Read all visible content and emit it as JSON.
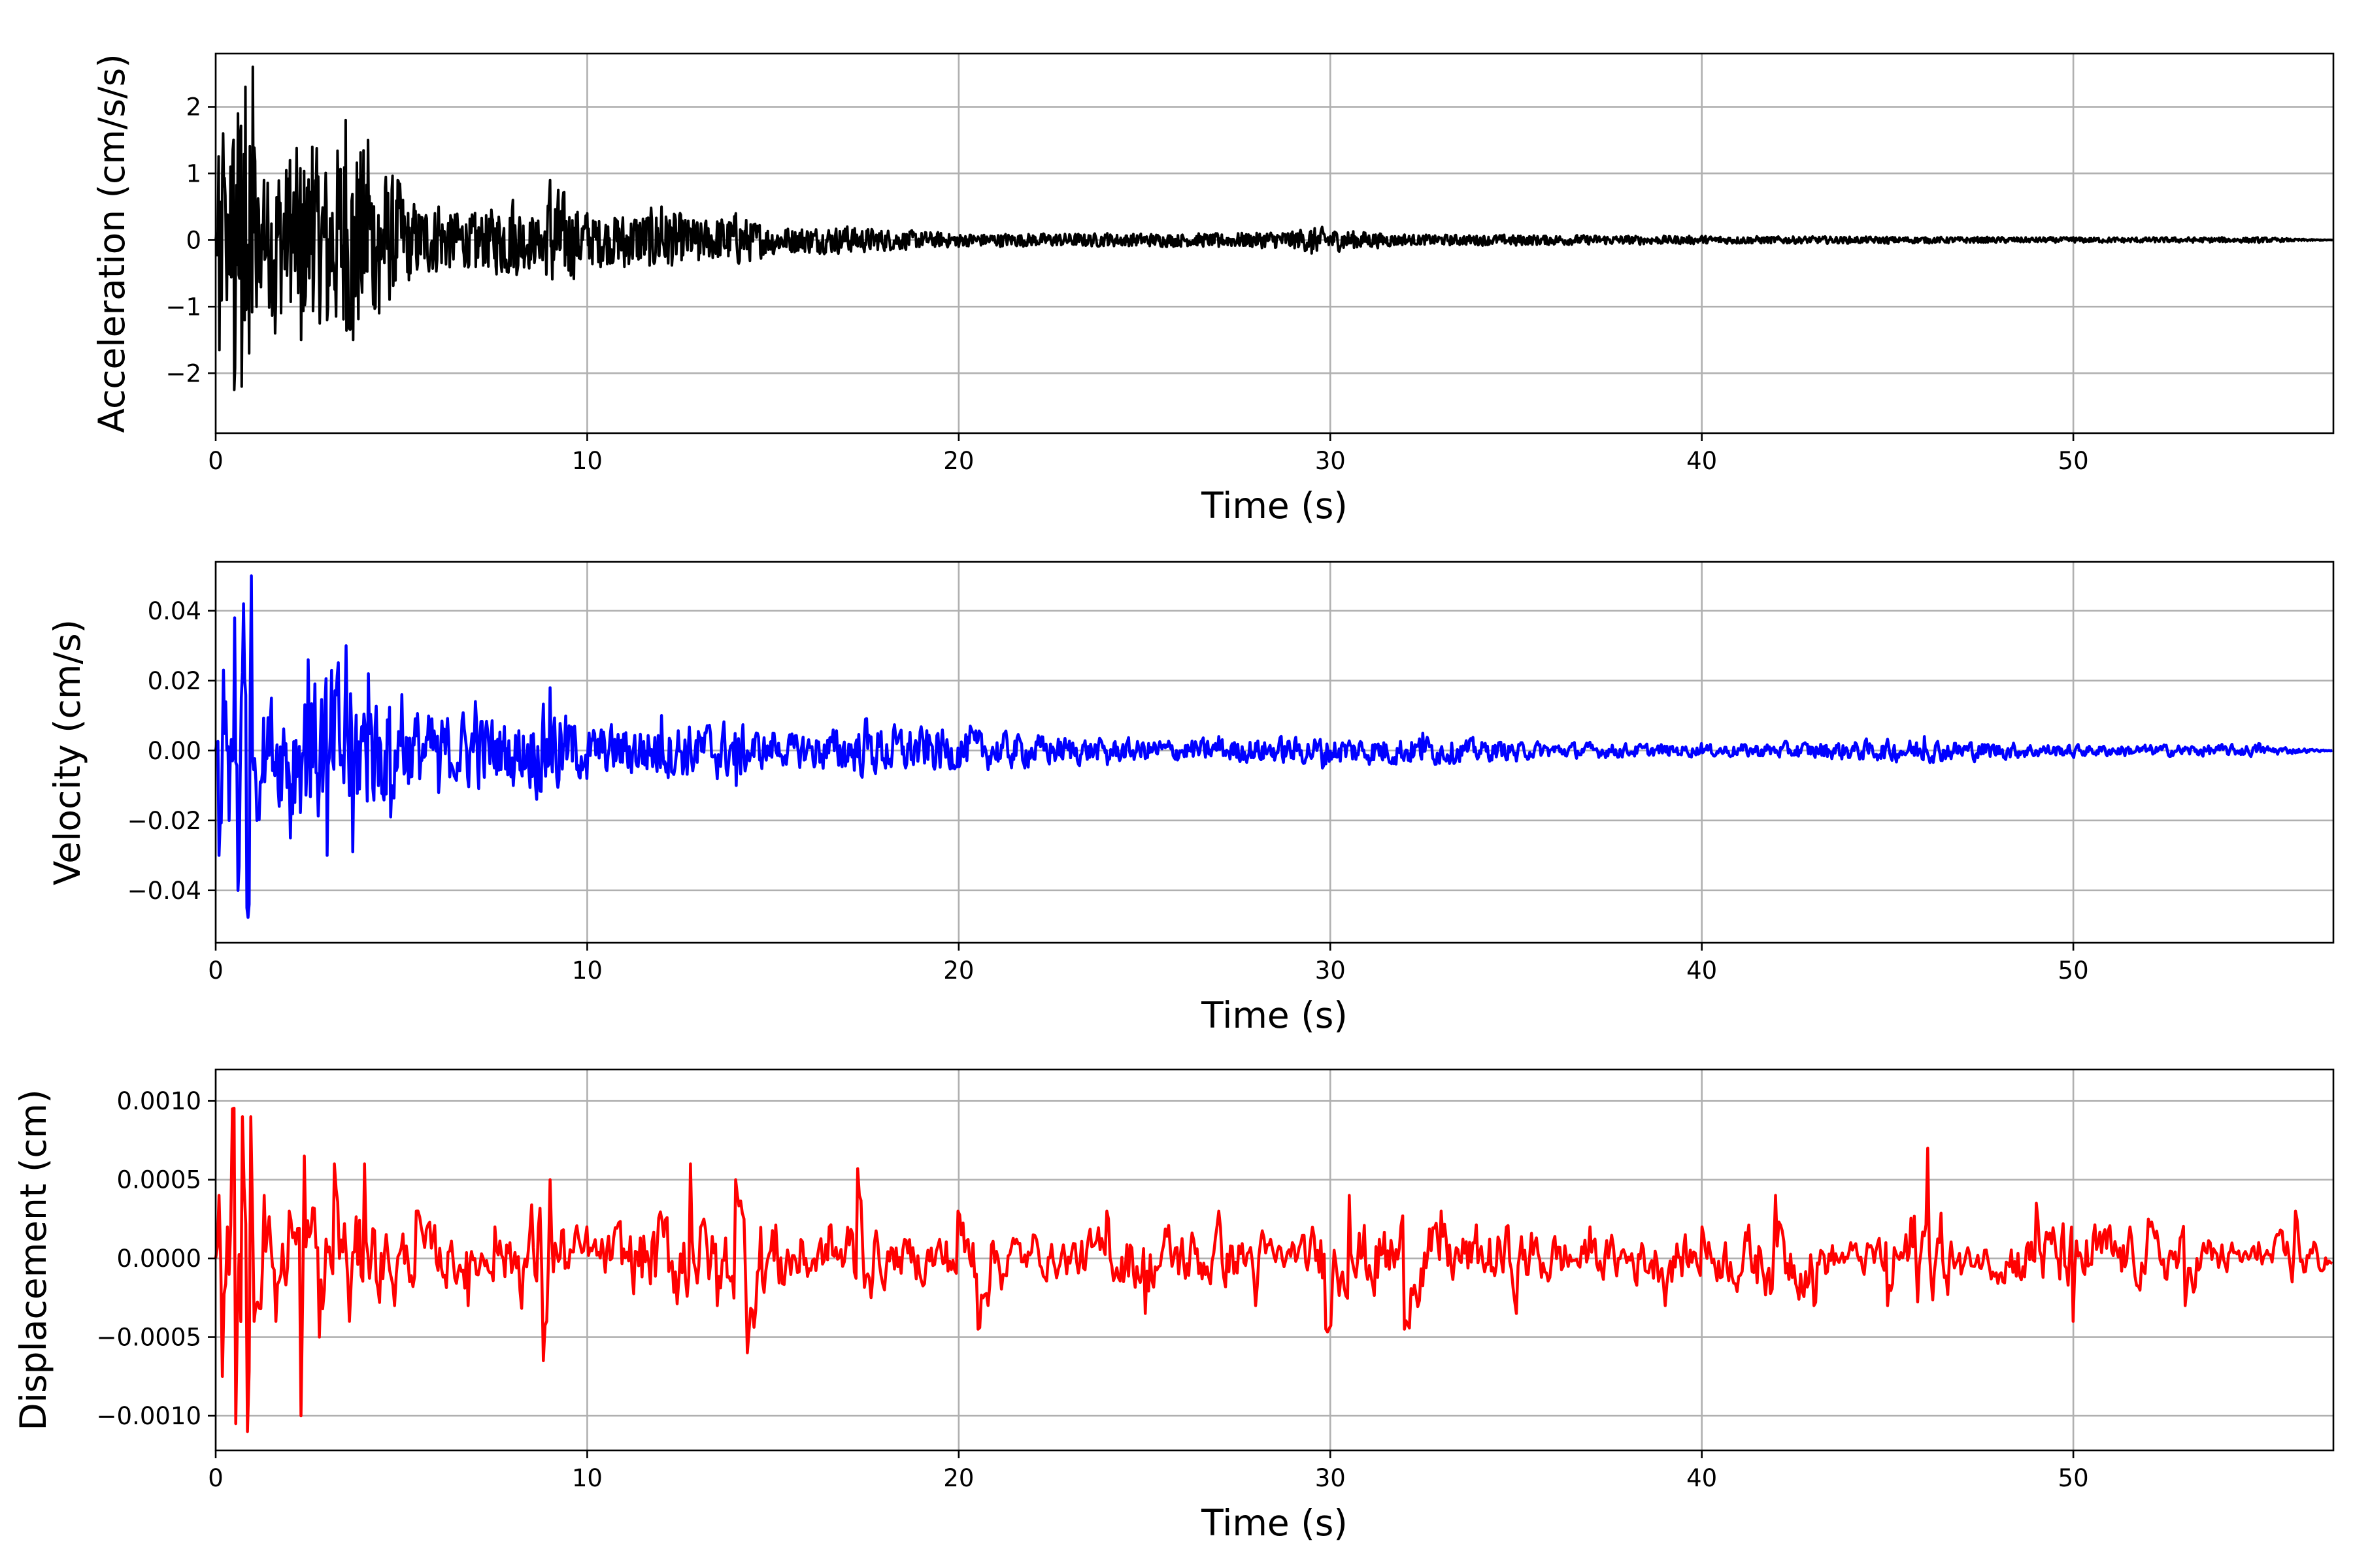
{
  "chart_data": [
    {
      "type": "line",
      "xlabel": "Time (s)",
      "ylabel": "Acceleration (cm/s/s)",
      "xlim": [
        0,
        57
      ],
      "ylim": [
        -2.9,
        2.8
      ],
      "xticks": [
        0,
        10,
        20,
        30,
        40,
        50
      ],
      "xtick_labels": [
        "0",
        "10",
        "20",
        "30",
        "40",
        "50"
      ],
      "yticks": [
        -2,
        -1,
        0,
        1,
        2
      ],
      "ytick_labels": [
        "−2",
        "−1",
        "0",
        "1",
        "2"
      ],
      "grid": true,
      "color": "#000000",
      "series": [
        {
          "x": [
            0,
            0.1,
            0.2,
            0.3,
            0.4,
            0.5,
            0.6,
            0.7,
            0.8,
            0.9,
            1.0,
            1.1,
            1.3,
            1.6,
            2.0,
            2.3,
            2.6,
            3.0,
            3.5,
            3.7,
            4.1,
            4.4,
            4.9,
            5.2,
            6.0,
            7.0,
            8.0,
            8.8,
            9.0,
            10.0,
            11.0,
            12.0,
            13.0,
            14.0,
            15.0,
            17.0,
            20.0,
            24.0,
            27.0,
            29.2,
            29.5,
            32.0,
            35.0,
            40.0,
            45.0,
            50.0,
            55.0,
            57.0
          ],
          "y": [
            0,
            -1.65,
            1.6,
            -0.9,
            1.1,
            -2.25,
            1.9,
            -2.2,
            2.3,
            -1.7,
            2.6,
            -1.0,
            0.9,
            -1.4,
            1.2,
            -1.5,
            1.4,
            -1.2,
            1.8,
            -1.5,
            1.5,
            -1.1,
            0.9,
            -0.6,
            0.5,
            -0.4,
            0.6,
            -0.3,
            0.9,
            0.4,
            -0.4,
            0.5,
            -0.3,
            0.4,
            -0.2,
            0.2,
            -0.1,
            0.1,
            -0.1,
            0.15,
            -0.2,
            0.08,
            -0.08,
            0.06,
            -0.05,
            0.04,
            -0.04,
            0
          ]
        }
      ]
    },
    {
      "type": "line",
      "xlabel": "Time (s)",
      "ylabel": "Velocity (cm/s)",
      "xlim": [
        0,
        57
      ],
      "ylim": [
        -0.055,
        0.054
      ],
      "xticks": [
        0,
        10,
        20,
        30,
        40,
        50
      ],
      "xtick_labels": [
        "0",
        "10",
        "20",
        "30",
        "40",
        "50"
      ],
      "yticks": [
        -0.04,
        -0.02,
        0.0,
        0.02,
        0.04
      ],
      "ytick_labels": [
        "−0.04",
        "−0.02",
        "0.00",
        "0.02",
        "0.04"
      ],
      "grid": true,
      "color": "#0000ff",
      "series": [
        {
          "x": [
            0,
            0.1,
            0.2,
            0.35,
            0.5,
            0.6,
            0.75,
            0.85,
            0.95,
            1.1,
            1.5,
            2.0,
            2.5,
            3.0,
            3.5,
            3.7,
            4.1,
            4.7,
            5.0,
            6.0,
            7.0,
            8.0,
            9.0,
            10.0,
            12.0,
            14.0,
            15.0,
            17.5,
            20.3,
            24.0,
            27.0,
            29.8,
            32.5,
            35.0,
            40.0,
            46.0,
            50.0,
            55.0,
            57.0
          ],
          "y": [
            0,
            -0.03,
            0.023,
            -0.02,
            0.038,
            -0.04,
            0.042,
            -0.045,
            0.05,
            -0.02,
            0.015,
            -0.025,
            0.026,
            -0.03,
            0.03,
            -0.029,
            0.022,
            -0.019,
            0.016,
            -0.012,
            0.014,
            -0.01,
            0.018,
            -0.008,
            0.01,
            -0.01,
            0.005,
            0.009,
            0.007,
            -0.004,
            0.004,
            -0.005,
            0.005,
            -0.003,
            0.002,
            0.004,
            -0.002,
            0.002,
            0
          ]
        }
      ]
    },
    {
      "type": "line",
      "xlabel": "Time (s)",
      "ylabel": "Displacement (cm)",
      "xlim": [
        0,
        57
      ],
      "ylim": [
        -0.00122,
        0.0012
      ],
      "xticks": [
        0,
        10,
        20,
        30,
        40,
        50
      ],
      "xtick_labels": [
        "0",
        "10",
        "20",
        "30",
        "40",
        "50"
      ],
      "yticks": [
        -0.001,
        -0.0005,
        0.0,
        0.0005,
        0.001
      ],
      "ytick_labels": [
        "−0.0010",
        "−0.0005",
        "0.0000",
        "0.0005",
        "0.0010"
      ],
      "grid": true,
      "color": "#ff0000",
      "series": [
        {
          "x": [
            0,
            0.1,
            0.2,
            0.3,
            0.45,
            0.55,
            0.7,
            0.85,
            0.95,
            1.05,
            1.3,
            1.6,
            2.0,
            2.3,
            2.4,
            2.8,
            3.2,
            3.6,
            4.0,
            4.8,
            5.4,
            6.8,
            7.5,
            8.8,
            9.0,
            10.0,
            12.8,
            13.5,
            14.0,
            14.3,
            16.5,
            17.3,
            18.0,
            20.0,
            20.5,
            22.0,
            24.0,
            25.0,
            27.0,
            28.0,
            29.0,
            29.9,
            30.5,
            32.0,
            33.0,
            35.0,
            37.0,
            39.0,
            40.0,
            42.0,
            43.0,
            44.0,
            45.0,
            46.1,
            47.0,
            49.0,
            50.0,
            52.0,
            53.0,
            55.0,
            56.0,
            57.0
          ],
          "y": [
            0,
            0.0004,
            -0.00075,
            0.0002,
            0.00095,
            -0.00105,
            0.0009,
            -0.0011,
            0.0009,
            -0.0004,
            0.0004,
            -0.0004,
            0.0003,
            -0.001,
            0.00065,
            -0.0005,
            0.0006,
            -0.0004,
            0.0006,
            -0.0003,
            0.0003,
            -0.0003,
            0.0002,
            -0.00065,
            0.0005,
            0.0002,
            0.0006,
            -0.0003,
            0.0005,
            -0.0006,
            0.0002,
            0.00057,
            -0.0002,
            0.0003,
            -0.00045,
            0.00015,
            0.0003,
            -0.00035,
            0.0003,
            -0.0003,
            0.0001,
            -0.00045,
            0.0004,
            -0.00045,
            0.0003,
            -0.00035,
            0.0002,
            -0.0003,
            0.0002,
            0.0004,
            -0.0003,
            0.0001,
            -0.0003,
            0.0007,
            -0.0001,
            0.00035,
            -0.0004,
            0.00025,
            -0.0003,
            0.0001,
            0.0003,
            0.0001
          ]
        }
      ]
    }
  ]
}
